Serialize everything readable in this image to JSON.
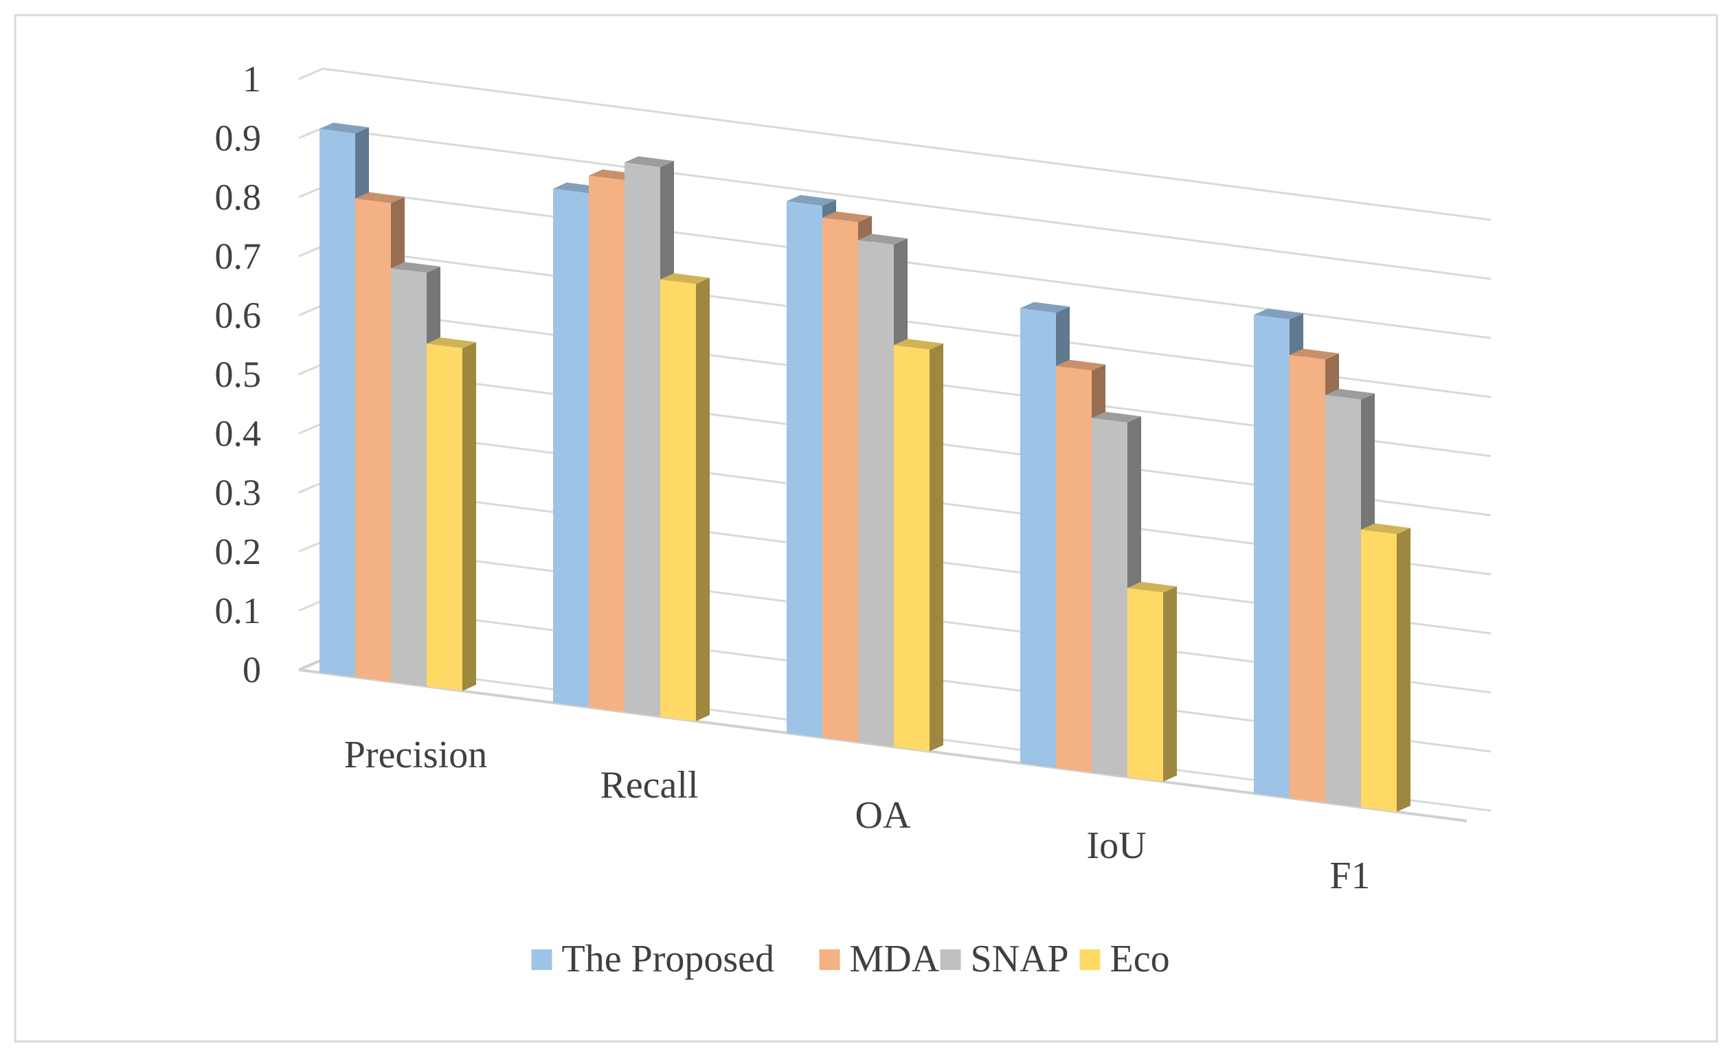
{
  "chart_data": {
    "type": "bar",
    "title": "",
    "xlabel": "",
    "ylabel": "",
    "ylim": [
      0,
      1
    ],
    "yticks": [
      "0",
      "0.1",
      "0.2",
      "0.3",
      "0.4",
      "0.5",
      "0.6",
      "0.7",
      "0.8",
      "0.9",
      "1"
    ],
    "grid": true,
    "legend_position": "bottom",
    "categories": [
      "Precision",
      "Recall",
      "OA",
      "IoU",
      "F1"
    ],
    "series": [
      {
        "name": "The Proposed",
        "color": "#9dc3e6",
        "values": [
          0.92,
          0.87,
          0.9,
          0.77,
          0.81
        ]
      },
      {
        "name": "MDA",
        "color": "#f4b183",
        "values": [
          0.81,
          0.9,
          0.88,
          0.68,
          0.75
        ]
      },
      {
        "name": "SNAP",
        "color": "#c0c0c0",
        "values": [
          0.7,
          0.93,
          0.85,
          0.6,
          0.69
        ]
      },
      {
        "name": "Eco",
        "color": "#ffd966",
        "values": [
          0.58,
          0.74,
          0.68,
          0.32,
          0.47
        ]
      }
    ]
  }
}
